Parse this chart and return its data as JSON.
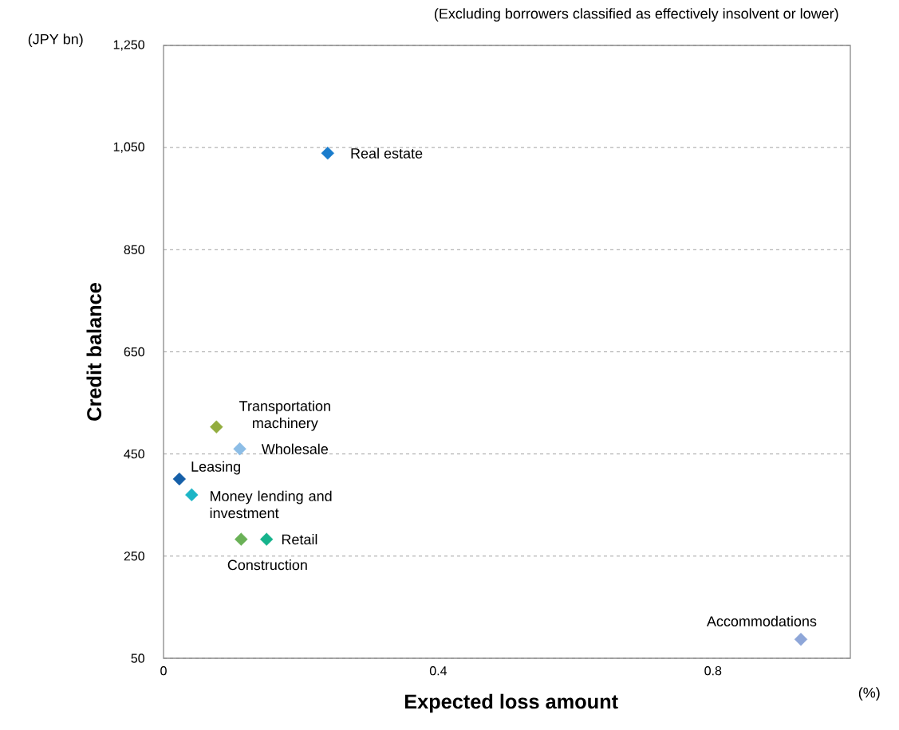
{
  "chart_data": {
    "type": "scatter",
    "subtitle": "(Excluding borrowers classified as effectively insolvent or lower)",
    "xlabel": "Expected loss amount",
    "ylabel": "Credit balance",
    "x": [
      0.239,
      0.077,
      0.111,
      0.023,
      0.041,
      0.113,
      0.15,
      0.928
    ],
    "values": [
      1039,
      503,
      460,
      401,
      370,
      283,
      283,
      87
    ],
    "colors": [
      "#1a7ccc",
      "#93ad3f",
      "#8cbde6",
      "#155fa8",
      "#1cb5c6",
      "#6ab157",
      "#16b38c",
      "#8ea6d8"
    ],
    "marker": "diamond",
    "xlim": [
      0,
      1.0
    ],
    "xticks": [
      0,
      0.4,
      0.8
    ],
    "ylim": [
      50,
      1250
    ],
    "yticks": [
      50,
      250,
      450,
      650,
      850,
      {
        "value": 1050,
        "label": "1,050"
      },
      {
        "value": 1250,
        "label": "1,250"
      }
    ],
    "grid": "y",
    "annotations": [
      {
        "text": "Real estate",
        "x": 0.239,
        "y": 1039
      },
      {
        "text": "Transportation machinery",
        "x": 0.077,
        "y": 503
      },
      {
        "text": "Wholesale",
        "x": 0.111,
        "y": 460
      },
      {
        "text": "Leasing",
        "x": 0.023,
        "y": 401
      },
      {
        "text": "Money lending and investment",
        "x": 0.041,
        "y": 370
      },
      {
        "text": "Construction",
        "x": 0.113,
        "y": 283
      },
      {
        "text": "Retail",
        "x": 0.15,
        "y": 283
      },
      {
        "text": "Accommodations",
        "x": 0.928,
        "y": 87
      },
      "(JPY bn)",
      "(%)"
    ]
  }
}
